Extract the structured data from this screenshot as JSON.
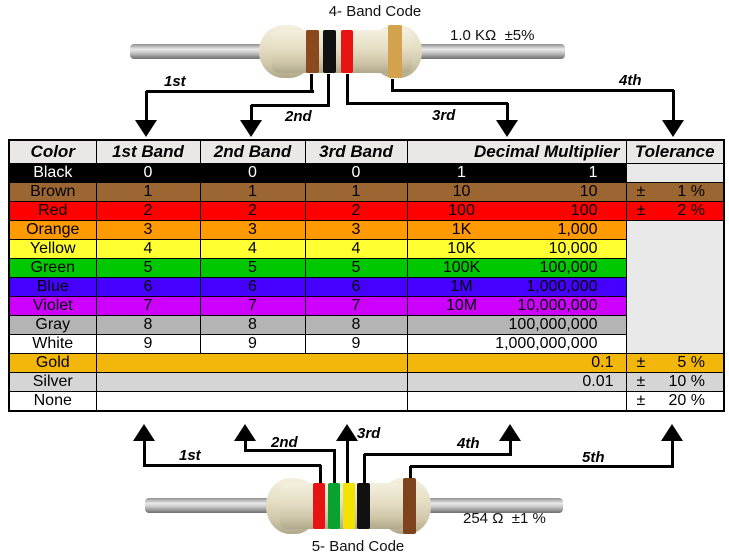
{
  "top_resistor": {
    "title": "4- Band Code",
    "value_label": "1.0 KΩ  ±5%",
    "bands": [
      {
        "name": "brown",
        "color": "#8a4a1e"
      },
      {
        "name": "black",
        "color": "#111111"
      },
      {
        "name": "red",
        "color": "#e81414"
      },
      {
        "name": "gold",
        "color": "#d2a24c"
      }
    ],
    "arrow_labels": [
      "1st",
      "2nd",
      "3rd",
      "4th"
    ]
  },
  "bottom_resistor": {
    "title": "5- Band Code",
    "value_label": "254 Ω  ±1 %",
    "bands": [
      {
        "name": "red",
        "color": "#e81414"
      },
      {
        "name": "green",
        "color": "#0aa22e"
      },
      {
        "name": "yellow",
        "color": "#f2e400"
      },
      {
        "name": "black",
        "color": "#111111"
      },
      {
        "name": "brown",
        "color": "#7c431c"
      }
    ],
    "arrow_labels": [
      "1st",
      "2nd",
      "3rd",
      "4th",
      "5th"
    ]
  },
  "table": {
    "headers": [
      "Color",
      "1st Band",
      "2nd Band",
      "3rd Band",
      "Decimal Multiplier",
      "Tolerance"
    ],
    "header_bg": "#eae8e4",
    "empty_tolerance_bg": "#e9e9e9",
    "rows": [
      {
        "color": "Black",
        "bg": "#000000",
        "text": "#ffffff",
        "bands": [
          "0",
          "0",
          "0"
        ],
        "mult_abbrev": "1",
        "mult_full": "1",
        "tol_sign": "",
        "tol_value": ""
      },
      {
        "color": "Brown",
        "bg": "#9c6632",
        "text": "#000000",
        "bands": [
          "1",
          "1",
          "1"
        ],
        "mult_abbrev": "10",
        "mult_full": "10",
        "tol_sign": "±",
        "tol_value": "1 %"
      },
      {
        "color": "Red",
        "bg": "#fe0000",
        "text": "#000000",
        "bands": [
          "2",
          "2",
          "2"
        ],
        "mult_abbrev": "100",
        "mult_full": "100",
        "tol_sign": "±",
        "tol_value": "2 %"
      },
      {
        "color": "Orange",
        "bg": "#ff9a00",
        "text": "#000000",
        "bands": [
          "3",
          "3",
          "3"
        ],
        "mult_abbrev": "1K",
        "mult_full": "1,000",
        "tol_sign": "",
        "tol_value": ""
      },
      {
        "color": "Yellow",
        "bg": "#ffff32",
        "text": "#000000",
        "bands": [
          "4",
          "4",
          "4"
        ],
        "mult_abbrev": "10K",
        "mult_full": "10,000",
        "tol_sign": "",
        "tol_value": ""
      },
      {
        "color": "Green",
        "bg": "#00c800",
        "text": "#000000",
        "bands": [
          "5",
          "5",
          "5"
        ],
        "mult_abbrev": "100K",
        "mult_full": "100,000",
        "tol_sign": "",
        "tol_value": ""
      },
      {
        "color": "Blue",
        "bg": "#4600ff",
        "text": "#000000",
        "bands": [
          "6",
          "6",
          "6"
        ],
        "mult_abbrev": "1M",
        "mult_full": "1,000,000",
        "tol_sign": "",
        "tol_value": ""
      },
      {
        "color": "Violet",
        "bg": "#cd00fe",
        "text": "#000000",
        "bands": [
          "7",
          "7",
          "7"
        ],
        "mult_abbrev": "10M",
        "mult_full": "10,000,000",
        "tol_sign": "",
        "tol_value": ""
      },
      {
        "color": "Gray",
        "bg": "#b4b4b4",
        "text": "#000000",
        "bands": [
          "8",
          "8",
          "8"
        ],
        "mult_abbrev": "",
        "mult_full": "100,000,000",
        "tol_sign": "",
        "tol_value": ""
      },
      {
        "color": "White",
        "bg": "#ffffff",
        "text": "#000000",
        "bands": [
          "9",
          "9",
          "9"
        ],
        "mult_abbrev": "",
        "mult_full": "1,000,000,000",
        "tol_sign": "",
        "tol_value": ""
      },
      {
        "color": "Gold",
        "bg": "#f2b70a",
        "text": "#000000",
        "bands": [],
        "mult_abbrev": "",
        "mult_full": "0.1",
        "tol_sign": "±",
        "tol_value": "5 %"
      },
      {
        "color": "Silver",
        "bg": "#d5d5d5",
        "text": "#000000",
        "bands": [],
        "mult_abbrev": "",
        "mult_full": "0.01",
        "tol_sign": "±",
        "tol_value": "10 %"
      },
      {
        "color": "None",
        "bg": "#ffffff",
        "text": "#000000",
        "bands": [],
        "mult_abbrev": "",
        "mult_full": "",
        "tol_sign": "±",
        "tol_value": "20 %"
      }
    ]
  }
}
